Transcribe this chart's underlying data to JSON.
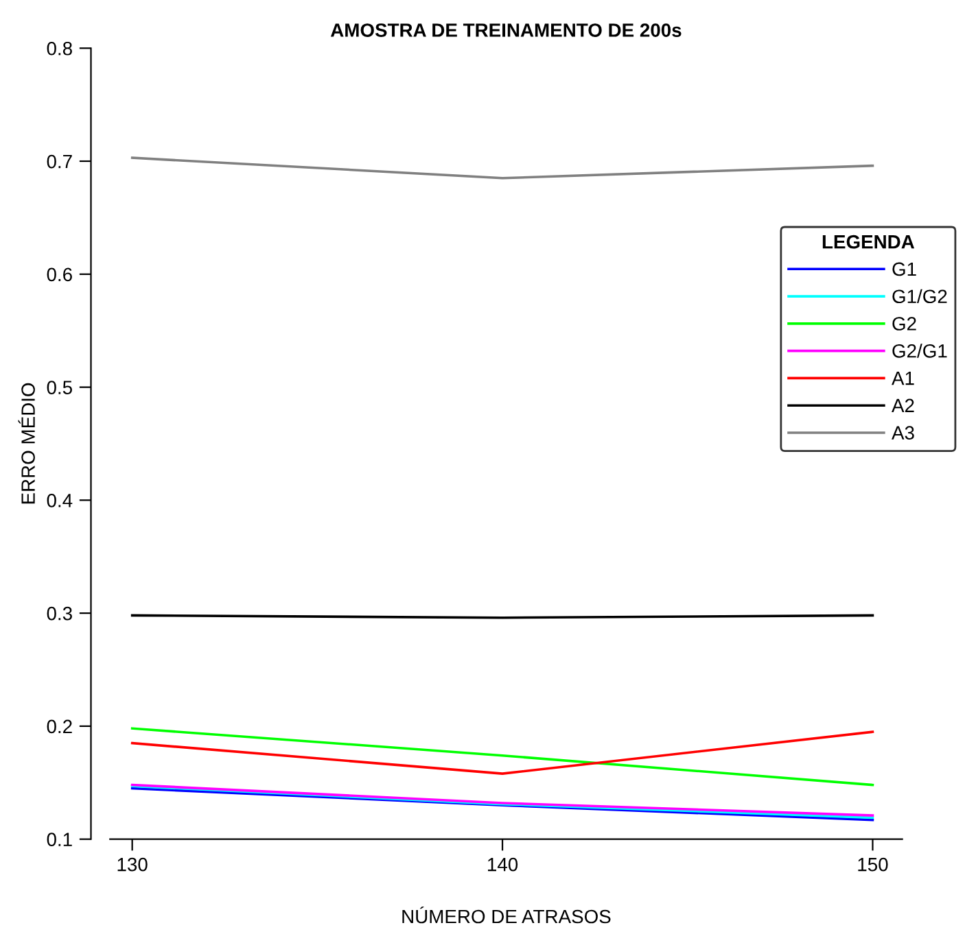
{
  "chart_data": {
    "type": "line",
    "title": "AMOSTRA DE TREINAMENTO DE 200s",
    "xlabel": "NÚMERO DE ATRASOS",
    "ylabel": "ERRO MÉDIO",
    "legend_title": "LEGENDA",
    "x": [
      130,
      140,
      150
    ],
    "series": [
      {
        "name": "G1",
        "color": "#0000ff",
        "values": [
          0.145,
          0.13,
          0.117
        ]
      },
      {
        "name": "G1/G2",
        "color": "#00ffff",
        "values": [
          0.147,
          0.131,
          0.119
        ]
      },
      {
        "name": "G2",
        "color": "#00ff00",
        "values": [
          0.198,
          0.174,
          0.148
        ]
      },
      {
        "name": "G2/G1",
        "color": "#ff00ff",
        "values": [
          0.148,
          0.132,
          0.121
        ]
      },
      {
        "name": "A1",
        "color": "#ff0000",
        "values": [
          0.185,
          0.158,
          0.195
        ]
      },
      {
        "name": "A2",
        "color": "#000000",
        "values": [
          0.298,
          0.296,
          0.298
        ]
      },
      {
        "name": "A3",
        "color": "#808080",
        "values": [
          0.703,
          0.685,
          0.696
        ]
      }
    ],
    "xlim": [
      129.4,
      150.8
    ],
    "ylim": [
      0.1,
      0.8
    ],
    "xticks": [
      130,
      140,
      150
    ],
    "yticks": [
      0.1,
      0.2,
      0.3,
      0.4,
      0.5,
      0.6,
      0.7,
      0.8
    ],
    "grid": false,
    "legend": "right",
    "marker": "none",
    "line_style": "solid"
  }
}
